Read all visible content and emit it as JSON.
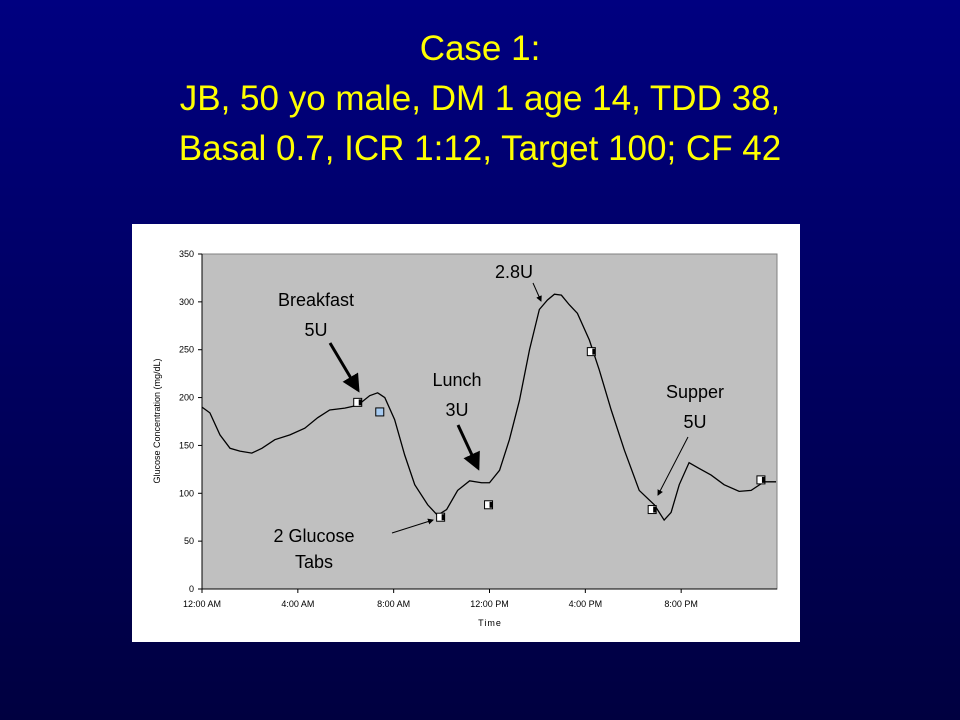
{
  "slide": {
    "title": [
      "Case 1:",
      "JB, 50 yo male, DM 1 age 14, TDD 38,",
      "Basal 0.7, ICR 1:12, Target 100; CF 42"
    ]
  },
  "chart_data": {
    "type": "line",
    "x_label": "Time",
    "y_label": "Glucose Concentration (mg/dL)",
    "xlim": [
      0,
      24
    ],
    "ylim": [
      0,
      350
    ],
    "xticks": [
      {
        "value": 0,
        "label": "12:00 AM"
      },
      {
        "value": 4,
        "label": "4:00 AM"
      },
      {
        "value": 8,
        "label": "8:00 AM"
      },
      {
        "value": 12,
        "label": "12:00 PM"
      },
      {
        "value": 16,
        "label": "4:00 PM"
      },
      {
        "value": 20,
        "label": "8:00 PM"
      }
    ],
    "yticks": [
      0,
      50,
      100,
      150,
      200,
      250,
      300,
      350
    ],
    "series": [
      {
        "color": "#000000",
        "x": [
          0,
          0.33,
          0.75,
          1.17,
          1.58,
          2.08,
          2.5,
          3.04,
          3.67,
          4.29,
          4.83,
          5.33,
          5.96,
          6.5,
          7,
          7.33,
          7.63,
          8.04,
          8.46,
          8.88,
          9.42,
          9.83,
          10.21,
          10.67,
          11.17,
          11.67,
          12,
          12.42,
          12.83,
          13.25,
          13.67,
          14.08,
          14.42,
          14.71,
          15,
          15.33,
          15.67,
          16.17,
          16.58,
          17.08,
          17.63,
          18.25,
          18.88,
          19.29,
          19.58,
          19.92,
          20.33,
          20.75,
          21.25,
          21.79,
          22.42,
          22.92,
          23.46,
          23.96
        ],
        "values": [
          190,
          184,
          161,
          147,
          144,
          142,
          147,
          156,
          161,
          168,
          179,
          187,
          189,
          192,
          202,
          205,
          200,
          177,
          140,
          109,
          88,
          77,
          83,
          103,
          113,
          111,
          111,
          124,
          156,
          197,
          250,
          292,
          302,
          308,
          307,
          297,
          288,
          260,
          229,
          187,
          145,
          103,
          88,
          72,
          80,
          109,
          132,
          126,
          119,
          109,
          102,
          103,
          112,
          112
        ]
      },
      {
        "color": "#ffffff",
        "x": [
          6.5,
          9.96,
          11.96,
          16.25,
          18.79,
          23.33
        ],
        "values": [
          195,
          75,
          88,
          248,
          83,
          114
        ]
      },
      {
        "color": "#a6caf0",
        "x": [
          7.42
        ],
        "values": [
          185
        ]
      }
    ],
    "annotations": [
      {
        "lines": [
          "Breakfast",
          "5U"
        ]
      },
      {
        "lines": [
          "Lunch",
          "3U"
        ]
      },
      {
        "lines": [
          "2.8U"
        ]
      },
      {
        "lines": [
          "Supper",
          "5U"
        ]
      },
      {
        "lines": [
          "2 Glucose",
          "Tabs"
        ]
      }
    ]
  }
}
